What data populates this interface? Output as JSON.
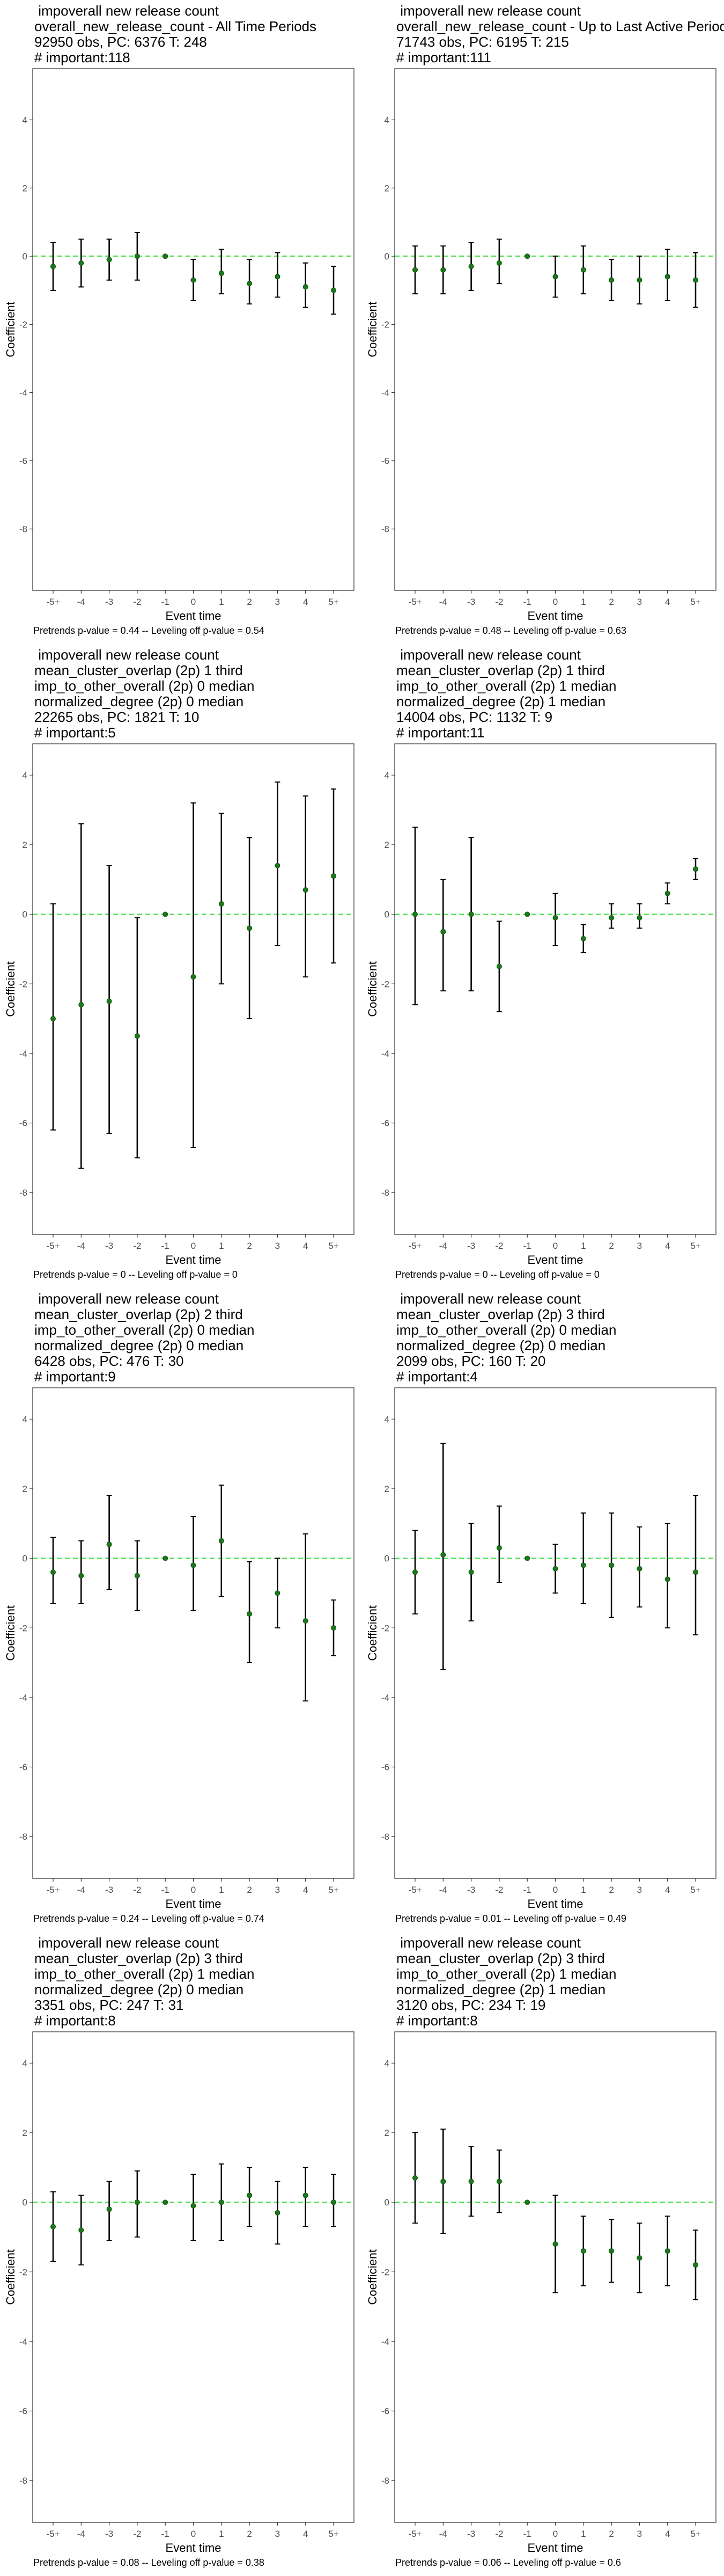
{
  "colors": {
    "point": "#1a7a1a",
    "zero_line": "#33dd33",
    "bar": "#000000",
    "frame": "#555555"
  },
  "chart_data": [
    {
      "type": "scatter",
      "title_lines": [
        " impoverall new release count",
        "overall_new_release_count - All Time Periods",
        "92950 obs, PC: 6376 T: 248",
        "# important:118"
      ],
      "footer": "Pretrends p-value = 0.44 -- Leveling off p-value = 0.54",
      "xlabel": "Event time",
      "ylabel": "Coefficient",
      "categories": [
        "-5+",
        "-4",
        "-3",
        "-2",
        "-1",
        "0",
        "1",
        "2",
        "3",
        "4",
        "5+"
      ],
      "yticks": [
        4,
        2,
        0,
        -2,
        -4,
        -6,
        -8
      ],
      "ylim": [
        -9.8,
        5.5
      ],
      "values": [
        -0.3,
        -0.2,
        -0.1,
        0.0,
        0.0,
        -0.7,
        -0.5,
        -0.8,
        -0.6,
        -0.9,
        -1.0
      ],
      "ci_low": [
        -1.0,
        -0.9,
        -0.7,
        -0.7,
        0.0,
        -1.3,
        -1.1,
        -1.4,
        -1.2,
        -1.5,
        -1.7
      ],
      "ci_high": [
        0.4,
        0.5,
        0.5,
        0.7,
        0.0,
        -0.1,
        0.2,
        -0.1,
        0.1,
        -0.2,
        -0.3
      ],
      "grid": false
    },
    {
      "type": "scatter",
      "title_lines": [
        " impoverall new release count",
        "overall_new_release_count - Up to Last Active Period",
        "71743 obs, PC: 6195 T: 215",
        "# important:111"
      ],
      "footer": "Pretrends p-value = 0.48 -- Leveling off p-value = 0.63",
      "xlabel": "Event time",
      "ylabel": "Coefficient",
      "categories": [
        "-5+",
        "-4",
        "-3",
        "-2",
        "-1",
        "0",
        "1",
        "2",
        "3",
        "4",
        "5+"
      ],
      "yticks": [
        4,
        2,
        0,
        -2,
        -4,
        -6,
        -8
      ],
      "ylim": [
        -9.8,
        5.5
      ],
      "values": [
        -0.4,
        -0.4,
        -0.3,
        -0.2,
        0.0,
        -0.6,
        -0.4,
        -0.7,
        -0.7,
        -0.6,
        -0.7
      ],
      "ci_low": [
        -1.1,
        -1.1,
        -1.0,
        -0.8,
        0.0,
        -1.2,
        -1.1,
        -1.3,
        -1.4,
        -1.3,
        -1.5
      ],
      "ci_high": [
        0.3,
        0.3,
        0.4,
        0.5,
        0.0,
        0.0,
        0.3,
        -0.1,
        0.0,
        0.2,
        0.1
      ],
      "grid": false
    },
    {
      "type": "scatter",
      "title_lines": [
        " impoverall new release count",
        "mean_cluster_overlap (2p) 1 third",
        "imp_to_other_overall (2p) 0 median",
        "normalized_degree (2p) 0 median",
        "22265 obs, PC: 1821 T: 10",
        "# important:5"
      ],
      "footer": "Pretrends p-value = 0 -- Leveling off p-value = 0",
      "xlabel": "Event time",
      "ylabel": "Coefficient",
      "categories": [
        "-5+",
        "-4",
        "-3",
        "-2",
        "-1",
        "0",
        "1",
        "2",
        "3",
        "4",
        "5+"
      ],
      "yticks": [
        4,
        2,
        0,
        -2,
        -4,
        -6,
        -8
      ],
      "ylim": [
        -9.2,
        4.9
      ],
      "values": [
        -3.0,
        -2.6,
        -2.5,
        -3.5,
        0.0,
        -1.8,
        0.3,
        -0.4,
        1.4,
        0.7,
        1.1
      ],
      "ci_low": [
        -6.2,
        -7.3,
        -6.3,
        -7.0,
        0.0,
        -6.7,
        -2.0,
        -3.0,
        -0.9,
        -1.8,
        -1.4
      ],
      "ci_high": [
        0.3,
        2.6,
        1.4,
        -0.1,
        0.0,
        3.2,
        2.9,
        2.2,
        3.8,
        3.4,
        3.6
      ],
      "grid": false
    },
    {
      "type": "scatter",
      "title_lines": [
        " impoverall new release count",
        "mean_cluster_overlap (2p) 1 third",
        "imp_to_other_overall (2p) 1 median",
        "normalized_degree (2p) 1 median",
        "14004 obs, PC: 1132 T: 9",
        "# important:11"
      ],
      "footer": "Pretrends p-value = 0 -- Leveling off p-value = 0",
      "xlabel": "Event time",
      "ylabel": "Coefficient",
      "categories": [
        "-5+",
        "-4",
        "-3",
        "-2",
        "-1",
        "0",
        "1",
        "2",
        "3",
        "4",
        "5+"
      ],
      "yticks": [
        4,
        2,
        0,
        -2,
        -4,
        -6,
        -8
      ],
      "ylim": [
        -9.2,
        4.9
      ],
      "values": [
        0.0,
        -0.5,
        0.0,
        -1.5,
        0.0,
        -0.1,
        -0.7,
        -0.1,
        -0.1,
        0.6,
        1.3
      ],
      "ci_low": [
        -2.6,
        -2.2,
        -2.2,
        -2.8,
        0.0,
        -0.9,
        -1.1,
        -0.4,
        -0.4,
        0.3,
        1.0
      ],
      "ci_high": [
        2.5,
        1.0,
        2.2,
        -0.2,
        0.0,
        0.6,
        -0.3,
        0.3,
        0.3,
        0.9,
        1.6
      ],
      "grid": false
    },
    {
      "type": "scatter",
      "title_lines": [
        " impoverall new release count",
        "mean_cluster_overlap (2p) 2 third",
        "imp_to_other_overall (2p) 0 median",
        "normalized_degree (2p) 0 median",
        "6428 obs, PC: 476 T: 30",
        "# important:9"
      ],
      "footer": "Pretrends p-value = 0.24 -- Leveling off p-value = 0.74",
      "xlabel": "Event time",
      "ylabel": "Coefficient",
      "categories": [
        "-5+",
        "-4",
        "-3",
        "-2",
        "-1",
        "0",
        "1",
        "2",
        "3",
        "4",
        "5+"
      ],
      "yticks": [
        4,
        2,
        0,
        -2,
        -4,
        -6,
        -8
      ],
      "ylim": [
        -9.2,
        4.9
      ],
      "values": [
        -0.4,
        -0.5,
        0.4,
        -0.5,
        0.0,
        -0.2,
        0.5,
        -1.6,
        -1.0,
        -1.8,
        -2.0
      ],
      "ci_low": [
        -1.3,
        -1.3,
        -0.9,
        -1.5,
        0.0,
        -1.5,
        -1.1,
        -3.0,
        -2.0,
        -4.1,
        -2.8
      ],
      "ci_high": [
        0.6,
        0.5,
        1.8,
        0.5,
        0.0,
        1.2,
        2.1,
        -0.1,
        0.0,
        0.7,
        -1.2
      ],
      "grid": false
    },
    {
      "type": "scatter",
      "title_lines": [
        " impoverall new release count",
        "mean_cluster_overlap (2p) 3 third",
        "imp_to_other_overall (2p) 0 median",
        "normalized_degree (2p) 0 median",
        "2099 obs, PC: 160 T: 20",
        "# important:4"
      ],
      "footer": "Pretrends p-value = 0.01 -- Leveling off p-value = 0.49",
      "xlabel": "Event time",
      "ylabel": "Coefficient",
      "categories": [
        "-5+",
        "-4",
        "-3",
        "-2",
        "-1",
        "0",
        "1",
        "2",
        "3",
        "4",
        "5+"
      ],
      "yticks": [
        4,
        2,
        0,
        -2,
        -4,
        -6,
        -8
      ],
      "ylim": [
        -9.2,
        4.9
      ],
      "values": [
        -0.4,
        0.1,
        -0.4,
        0.3,
        0.0,
        -0.3,
        -0.2,
        -0.2,
        -0.3,
        -0.6,
        -0.4
      ],
      "ci_low": [
        -1.6,
        -3.2,
        -1.8,
        -0.7,
        0.0,
        -1.0,
        -1.3,
        -1.7,
        -1.4,
        -2.0,
        -2.2
      ],
      "ci_high": [
        0.8,
        3.3,
        1.0,
        1.5,
        0.0,
        0.4,
        1.3,
        1.3,
        0.9,
        1.0,
        1.8
      ],
      "grid": false
    },
    {
      "type": "scatter",
      "title_lines": [
        " impoverall new release count",
        "mean_cluster_overlap (2p) 3 third",
        "imp_to_other_overall (2p) 1 median",
        "normalized_degree (2p) 0 median",
        "3351 obs, PC: 247 T: 31",
        "# important:8"
      ],
      "footer": "Pretrends p-value = 0.08 -- Leveling off p-value = 0.38",
      "xlabel": "Event time",
      "ylabel": "Coefficient",
      "categories": [
        "-5+",
        "-4",
        "-3",
        "-2",
        "-1",
        "0",
        "1",
        "2",
        "3",
        "4",
        "5+"
      ],
      "yticks": [
        4,
        2,
        0,
        -2,
        -4,
        -6,
        -8
      ],
      "ylim": [
        -9.2,
        4.9
      ],
      "values": [
        -0.7,
        -0.8,
        -0.2,
        0.0,
        0.0,
        -0.1,
        0.0,
        0.2,
        -0.3,
        0.2,
        0.0
      ],
      "ci_low": [
        -1.7,
        -1.8,
        -1.1,
        -1.0,
        0.0,
        -1.1,
        -1.1,
        -0.7,
        -1.2,
        -0.7,
        -0.7
      ],
      "ci_high": [
        0.3,
        0.2,
        0.6,
        0.9,
        0.0,
        0.8,
        1.1,
        1.0,
        0.6,
        1.0,
        0.8
      ],
      "grid": false
    },
    {
      "type": "scatter",
      "title_lines": [
        " impoverall new release count",
        "mean_cluster_overlap (2p) 3 third",
        "imp_to_other_overall (2p) 1 median",
        "normalized_degree (2p) 1 median",
        "3120 obs, PC: 234 T: 19",
        "# important:8"
      ],
      "footer": "Pretrends p-value = 0.06 -- Leveling off p-value = 0.6",
      "xlabel": "Event time",
      "ylabel": "Coefficient",
      "categories": [
        "-5+",
        "-4",
        "-3",
        "-2",
        "-1",
        "0",
        "1",
        "2",
        "3",
        "4",
        "5+"
      ],
      "yticks": [
        4,
        2,
        0,
        -2,
        -4,
        -6,
        -8
      ],
      "ylim": [
        -9.2,
        4.9
      ],
      "values": [
        0.7,
        0.6,
        0.6,
        0.6,
        0.0,
        -1.2,
        -1.4,
        -1.4,
        -1.6,
        -1.4,
        -1.8
      ],
      "ci_low": [
        -0.6,
        -0.9,
        -0.4,
        -0.3,
        0.0,
        -2.6,
        -2.4,
        -2.3,
        -2.6,
        -2.4,
        -2.8
      ],
      "ci_high": [
        2.0,
        2.1,
        1.6,
        1.5,
        0.0,
        0.2,
        -0.4,
        -0.5,
        -0.6,
        -0.4,
        -0.8
      ],
      "grid": false
    }
  ]
}
